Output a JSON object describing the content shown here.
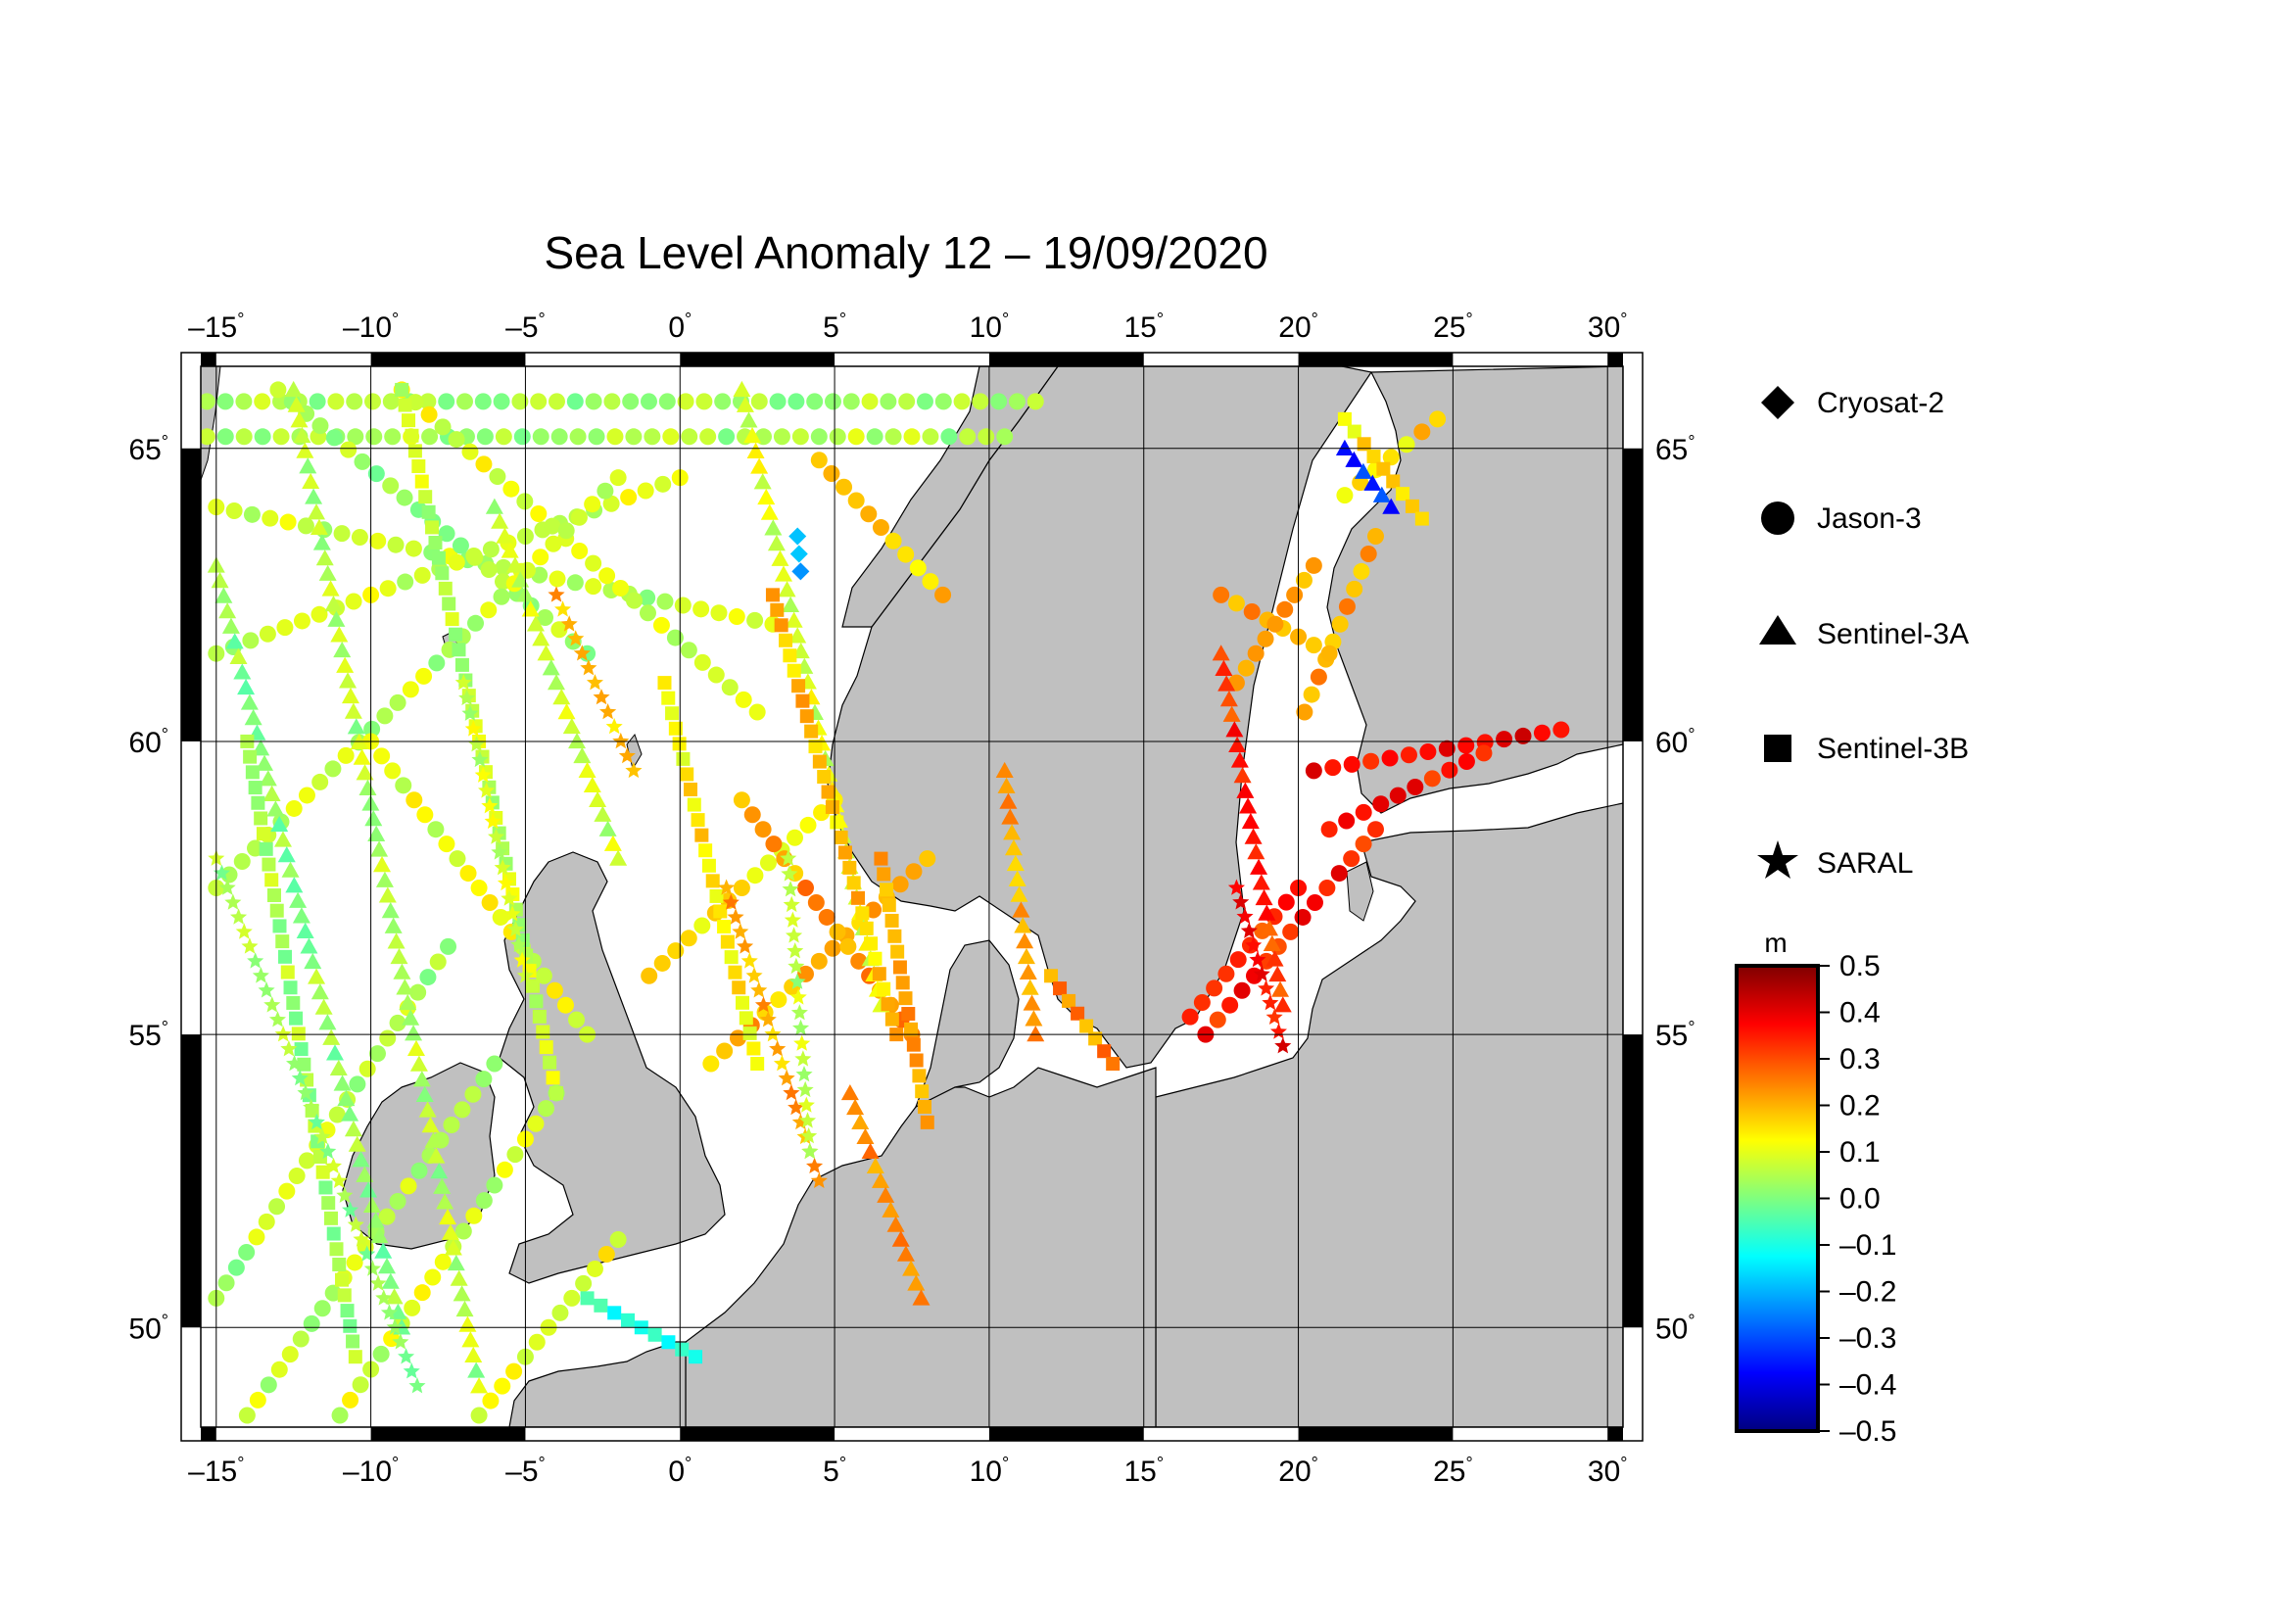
{
  "title": "Sea Level Anomaly 12 – 19/09/2020",
  "map": {
    "lon_range": [
      -15.5,
      30.5
    ],
    "lat_range": [
      48.3,
      66.4
    ],
    "lon_ticks": [
      -15,
      -10,
      -5,
      0,
      5,
      10,
      15,
      20,
      25,
      30
    ],
    "lat_ticks": [
      50,
      55,
      60,
      65
    ],
    "lon_tick_labels": [
      "–15",
      "–10",
      "–5",
      "0",
      "5",
      "10",
      "15",
      "20",
      "25",
      "30"
    ],
    "lat_tick_labels": [
      "50",
      "55",
      "60",
      "65"
    ],
    "degree_symbol": "°",
    "grid": true,
    "land_color": "#c0c0c0",
    "sea_color": "#ffffff"
  },
  "legend": {
    "items": [
      {
        "label": "Cryosat-2",
        "symbol": "diamond"
      },
      {
        "label": "Jason-3",
        "symbol": "circle"
      },
      {
        "label": "Sentinel-3A",
        "symbol": "triangle"
      },
      {
        "label": "Sentinel-3B",
        "symbol": "square"
      },
      {
        "label": "SARAL",
        "symbol": "star"
      }
    ]
  },
  "colorbar": {
    "unit": "m",
    "min": -0.5,
    "max": 0.5,
    "tick_values": [
      0.5,
      0.4,
      0.3,
      0.2,
      0.1,
      0.0,
      -0.1,
      -0.2,
      -0.3,
      -0.4,
      -0.5
    ],
    "tick_labels": [
      "0.5",
      "0.4",
      "0.3",
      "0.2",
      "0.1",
      "0.0",
      "–0.1",
      "–0.2",
      "–0.3",
      "–0.4",
      "–0.5"
    ],
    "palette": [
      "#00007f",
      "#0000ff",
      "#007fff",
      "#00ffff",
      "#7fff7f",
      "#ffff00",
      "#ff7f00",
      "#ff0000",
      "#7f0000"
    ]
  },
  "tracks": [
    {
      "sat": "Jason-3",
      "start": [
        -15.3,
        65.8
      ],
      "end": [
        11.5,
        65.8
      ],
      "value": 0.03
    },
    {
      "sat": "Jason-3",
      "start": [
        -15.3,
        65.2
      ],
      "end": [
        10.5,
        65.2
      ],
      "value": 0.05
    },
    {
      "sat": "Jason-3",
      "start": [
        -15.0,
        64.0
      ],
      "end": [
        3.0,
        62.0
      ],
      "value": 0.06
    },
    {
      "sat": "Jason-3",
      "start": [
        -15.0,
        61.5
      ],
      "end": [
        0.0,
        64.5
      ],
      "value": 0.08
    },
    {
      "sat": "Jason-3",
      "start": [
        -13.0,
        66.0
      ],
      "end": [
        -3.0,
        61.5
      ],
      "value": 0.04
    },
    {
      "sat": "Jason-3",
      "start": [
        -9.0,
        66.0
      ],
      "end": [
        2.5,
        60.5
      ],
      "value": 0.09
    },
    {
      "sat": "Jason-3",
      "start": [
        -15.0,
        57.5
      ],
      "end": [
        -2.0,
        64.5
      ],
      "value": 0.06
    },
    {
      "sat": "Jason-3",
      "start": [
        -10.0,
        60.0
      ],
      "end": [
        -3.0,
        55.0
      ],
      "value": 0.1
    },
    {
      "sat": "Jason-3",
      "start": [
        -1.0,
        56.0
      ],
      "end": [
        5.0,
        59.0
      ],
      "value": 0.14
    },
    {
      "sat": "Jason-3",
      "start": [
        1.0,
        54.5
      ],
      "end": [
        8.0,
        58.0
      ],
      "value": 0.2
    },
    {
      "sat": "Jason-3",
      "start": [
        2.0,
        59.0
      ],
      "end": [
        7.5,
        55.0
      ],
      "value": 0.22
    },
    {
      "sat": "Jason-3",
      "start": [
        4.5,
        64.8
      ],
      "end": [
        8.5,
        62.5
      ],
      "value": 0.18
    },
    {
      "sat": "Jason-3",
      "start": [
        -15.0,
        50.5
      ],
      "end": [
        -7.5,
        56.5
      ],
      "value": 0.05
    },
    {
      "sat": "Jason-3",
      "start": [
        -11.0,
        48.5
      ],
      "end": [
        -4.0,
        54.0
      ],
      "value": 0.08
    },
    {
      "sat": "Jason-3",
      "start": [
        -6.5,
        48.5
      ],
      "end": [
        -2.0,
        51.5
      ],
      "value": 0.12
    },
    {
      "sat": "Jason-3",
      "start": [
        -14.0,
        48.5
      ],
      "end": [
        -6.0,
        54.5
      ],
      "value": 0.07
    },
    {
      "sat": "Jason-3",
      "start": [
        17.0,
        55.0
      ],
      "end": [
        22.5,
        58.5
      ],
      "value": 0.35
    },
    {
      "sat": "Jason-3",
      "start": [
        16.5,
        55.3
      ],
      "end": [
        20.0,
        57.5
      ],
      "value": 0.33
    },
    {
      "sat": "Jason-3",
      "start": [
        20.5,
        59.5
      ],
      "end": [
        28.5,
        60.2
      ],
      "value": 0.37
    },
    {
      "sat": "Jason-3",
      "start": [
        21.0,
        58.5
      ],
      "end": [
        26.0,
        59.8
      ],
      "value": 0.35
    },
    {
      "sat": "Jason-3",
      "start": [
        20.2,
        60.5
      ],
      "end": [
        22.5,
        63.5
      ],
      "value": 0.22
    },
    {
      "sat": "Jason-3",
      "start": [
        17.5,
        62.5
      ],
      "end": [
        21.0,
        61.5
      ],
      "value": 0.21
    },
    {
      "sat": "Jason-3",
      "start": [
        18.0,
        61.0
      ],
      "end": [
        20.5,
        63.0
      ],
      "value": 0.2
    },
    {
      "sat": "Jason-3",
      "start": [
        21.5,
        64.2
      ],
      "end": [
        24.5,
        65.5
      ],
      "value": 0.16
    },
    {
      "sat": "Sentinel-3A",
      "start": [
        -15.0,
        63.0
      ],
      "end": [
        -9.0,
        50.0
      ],
      "value": 0.02
    },
    {
      "sat": "Sentinel-3A",
      "start": [
        -12.5,
        66.0
      ],
      "end": [
        -6.5,
        49.0
      ],
      "value": 0.05
    },
    {
      "sat": "Sentinel-3A",
      "start": [
        -6.0,
        64.0
      ],
      "end": [
        -2.0,
        58.0
      ],
      "value": 0.06
    },
    {
      "sat": "Sentinel-3A",
      "start": [
        2.0,
        66.0
      ],
      "end": [
        6.5,
        55.5
      ],
      "value": 0.09
    },
    {
      "sat": "Sentinel-3A",
      "start": [
        10.5,
        59.5
      ],
      "end": [
        11.5,
        55.0
      ],
      "value": 0.21
    },
    {
      "sat": "Sentinel-3A",
      "start": [
        17.5,
        61.5
      ],
      "end": [
        19.5,
        55.5
      ],
      "value": 0.33
    },
    {
      "sat": "Sentinel-3A",
      "start": [
        21.5,
        65.0
      ],
      "end": [
        23.0,
        64.0
      ],
      "value": -0.33
    },
    {
      "sat": "Sentinel-3A",
      "start": [
        5.5,
        54.0
      ],
      "end": [
        7.8,
        50.5
      ],
      "value": 0.25
    },
    {
      "sat": "Sentinel-3B",
      "start": [
        -14.0,
        60.0
      ],
      "end": [
        -10.5,
        49.5
      ],
      "value": 0.04
    },
    {
      "sat": "Sentinel-3B",
      "start": [
        -9.0,
        66.0
      ],
      "end": [
        -4.0,
        54.0
      ],
      "value": 0.07
    },
    {
      "sat": "Sentinel-3B",
      "start": [
        -0.5,
        61.0
      ],
      "end": [
        2.5,
        54.5
      ],
      "value": 0.14
    },
    {
      "sat": "Sentinel-3B",
      "start": [
        3.0,
        62.5
      ],
      "end": [
        7.0,
        55.0
      ],
      "value": 0.18
    },
    {
      "sat": "Sentinel-3B",
      "start": [
        6.5,
        58.0
      ],
      "end": [
        8.0,
        53.5
      ],
      "value": 0.23
    },
    {
      "sat": "Sentinel-3B",
      "start": [
        12.0,
        56.0
      ],
      "end": [
        14.0,
        54.5
      ],
      "value": 0.24
    },
    {
      "sat": "Sentinel-3B",
      "start": [
        21.5,
        65.5
      ],
      "end": [
        24.0,
        63.8
      ],
      "value": 0.13
    },
    {
      "sat": "Sentinel-3B",
      "start": [
        -3.0,
        50.5
      ],
      "end": [
        0.5,
        49.5
      ],
      "value": -0.08
    },
    {
      "sat": "SARAL",
      "start": [
        -15.0,
        58.0
      ],
      "end": [
        -8.5,
        49.0
      ],
      "value": 0.03
    },
    {
      "sat": "SARAL",
      "start": [
        -4.0,
        62.5
      ],
      "end": [
        -1.5,
        59.5
      ],
      "value": 0.19
    },
    {
      "sat": "SARAL",
      "start": [
        1.5,
        57.5
      ],
      "end": [
        4.5,
        52.5
      ],
      "value": 0.21
    },
    {
      "sat": "SARAL",
      "start": [
        3.5,
        58.0
      ],
      "end": [
        4.2,
        53.0
      ],
      "value": 0.06
    },
    {
      "sat": "SARAL",
      "start": [
        18.0,
        57.5
      ],
      "end": [
        19.5,
        54.8
      ],
      "value": 0.37
    },
    {
      "sat": "SARAL",
      "start": [
        -7.0,
        61.0
      ],
      "end": [
        -5.0,
        56.0
      ],
      "value": 0.08
    },
    {
      "sat": "Cryosat-2",
      "start": [
        3.8,
        63.5
      ],
      "end": [
        3.9,
        62.9
      ],
      "value": -0.2
    }
  ]
}
